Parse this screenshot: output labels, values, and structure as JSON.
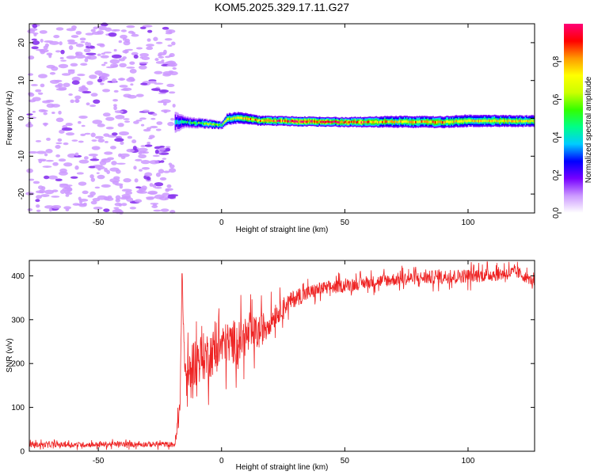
{
  "title": "KOM5.2025.329.17.11.G27",
  "chart_data": [
    {
      "type": "heatmap",
      "name": "spectrogram",
      "xlabel": "Height of straight line (km)",
      "ylabel": "Frequency (Hz)",
      "xlim": [
        -78,
        127
      ],
      "ylim": [
        -25,
        25
      ],
      "xticks": [
        -50,
        0,
        50,
        100
      ],
      "yticks": [
        -20,
        -10,
        0,
        10,
        20
      ],
      "colorbar": {
        "label": "Normalized spectral amplitude",
        "range": [
          0,
          1
        ],
        "ticks": [
          0.0,
          0.2,
          0.4,
          0.6,
          0.8
        ],
        "colormap": [
          "#ffffff",
          "#cc99ff",
          "#7700ff",
          "#0000ff",
          "#00ccff",
          "#00ff88",
          "#33ff00",
          "#ccff00",
          "#ffff00",
          "#ff9900",
          "#ff0000",
          "#ff0077"
        ]
      },
      "noise_region": {
        "x_range": [
          -78,
          -19
        ],
        "freq_range": [
          -25,
          25
        ]
      },
      "signal_track": [
        {
          "x": -19,
          "freq": -1.0,
          "width": 5.5,
          "amp": 0.35
        },
        {
          "x": -15,
          "freq": -1.0,
          "width": 3.0,
          "amp": 0.45
        },
        {
          "x": -5,
          "freq": -1.5,
          "width": 2.5,
          "amp": 0.6
        },
        {
          "x": 0,
          "freq": -1.8,
          "width": 2.0,
          "amp": 0.55
        },
        {
          "x": 2,
          "freq": -0.2,
          "width": 3.0,
          "amp": 0.65
        },
        {
          "x": 7,
          "freq": 0.2,
          "width": 3.0,
          "amp": 0.7
        },
        {
          "x": 15,
          "freq": -0.6,
          "width": 2.5,
          "amp": 0.8
        },
        {
          "x": 30,
          "freq": -0.8,
          "width": 2.5,
          "amp": 0.95
        },
        {
          "x": 50,
          "freq": -1.0,
          "width": 2.5,
          "amp": 0.9
        },
        {
          "x": 70,
          "freq": -0.9,
          "width": 3.0,
          "amp": 0.75
        },
        {
          "x": 90,
          "freq": -1.0,
          "width": 3.0,
          "amp": 0.8
        },
        {
          "x": 100,
          "freq": -0.6,
          "width": 3.2,
          "amp": 0.7
        },
        {
          "x": 115,
          "freq": -0.7,
          "width": 3.0,
          "amp": 0.75
        },
        {
          "x": 127,
          "freq": -0.7,
          "width": 3.0,
          "amp": 0.7
        }
      ]
    },
    {
      "type": "line",
      "name": "snr",
      "xlabel": "Height of straight line (km)",
      "ylabel": "SNR (v/v)",
      "xlim": [
        -78,
        127
      ],
      "ylim": [
        0,
        435
      ],
      "xticks": [
        -50,
        0,
        50,
        100
      ],
      "yticks": [
        0,
        100,
        200,
        300,
        400
      ],
      "line_color": "#ee2222",
      "series": [
        {
          "name": "SNR",
          "x": [
            -78,
            -60,
            -40,
            -25,
            -19,
            -17,
            -16,
            -15,
            -14,
            -12,
            -10,
            -5,
            0,
            5,
            10,
            15,
            20,
            25,
            30,
            35,
            40,
            50,
            60,
            70,
            80,
            90,
            100,
            110,
            120,
            127
          ],
          "y": [
            15,
            15,
            16,
            16,
            15,
            80,
            405,
            200,
            150,
            200,
            210,
            220,
            240,
            250,
            260,
            270,
            300,
            330,
            350,
            360,
            370,
            378,
            385,
            392,
            395,
            398,
            400,
            403,
            408,
            385
          ],
          "noise_amplitude": [
            6,
            6,
            6,
            6,
            6,
            40,
            0,
            60,
            55,
            55,
            55,
            55,
            50,
            50,
            45,
            40,
            30,
            22,
            20,
            18,
            16,
            14,
            14,
            15,
            15,
            16,
            16,
            16,
            15,
            10
          ]
        }
      ]
    }
  ]
}
